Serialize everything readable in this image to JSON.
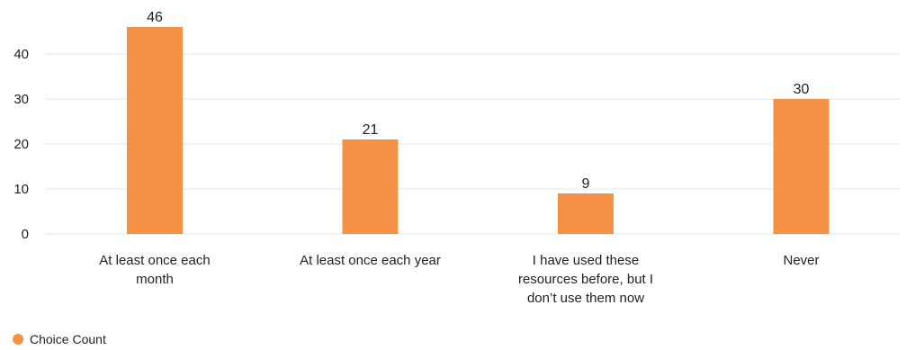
{
  "colors": {
    "bar": "#f59145",
    "grid": "#e6e6e6",
    "text": "#222222"
  },
  "chart_data": {
    "type": "bar",
    "categories": [
      [
        "At least once each",
        "month"
      ],
      [
        "At least once each year"
      ],
      [
        "I have used these",
        "resources before, but I",
        "don’t use them now"
      ],
      [
        "Never"
      ]
    ],
    "series": [
      {
        "name": "Choice Count",
        "values": [
          46,
          21,
          9,
          30
        ]
      }
    ],
    "y_ticks": [
      0,
      10,
      20,
      30,
      40
    ],
    "ylim": [
      0,
      50
    ],
    "grid": true,
    "legend": {
      "position": "bottom-left",
      "entries": [
        "Choice Count"
      ],
      "marker": "circle"
    },
    "data_labels": true
  }
}
